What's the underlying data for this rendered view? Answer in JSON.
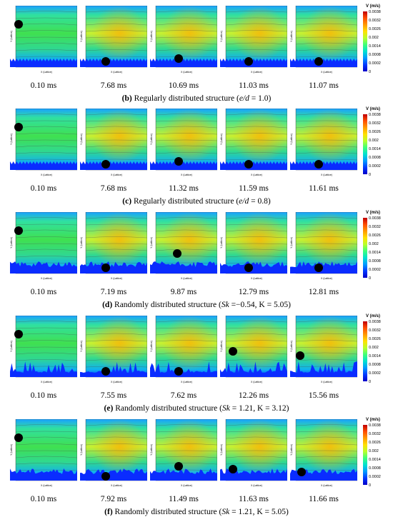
{
  "colorbar": {
    "title": "V (m/s)",
    "ticks": [
      "0.0038",
      "0.0032",
      "0.0026",
      "0.002",
      "0.0014",
      "0.0008",
      "0.0002",
      "0"
    ]
  },
  "axis_labels": {
    "x": "X (Lattice)",
    "y": "Y (Lattice)"
  },
  "rows": [
    {
      "caption_label": "(b)",
      "caption_text": " Regularly distributed structure (",
      "param": "e/d",
      "param_value": " = 1.0)",
      "times": [
        "0.10 ms",
        "7.68 ms",
        "10.69 ms",
        "11.03 ms",
        "11.07 ms"
      ],
      "surface": "regular"
    },
    {
      "caption_label": "(c)",
      "caption_text": " Regularly distributed structure (",
      "param": "e/d",
      "param_value": " = 0.8)",
      "times": [
        "0.10 ms",
        "7.68 ms",
        "11.32 ms",
        "11.59 ms",
        "11.61 ms"
      ],
      "surface": "regular"
    },
    {
      "caption_label": "(d)",
      "caption_text": " Randomly distributed structure (",
      "param": "Sk",
      "param_value": " =−0.54, K = 5.05)",
      "times": [
        "0.10 ms",
        "7.19 ms",
        "9.87 ms",
        "12.79 ms",
        "12.81 ms"
      ],
      "surface": "random"
    },
    {
      "caption_label": "(e)",
      "caption_text": " Randomly distributed structure (",
      "param": "Sk",
      "param_value": " = 1.21, K = 3.12)",
      "times": [
        "0.10 ms",
        "7.55 ms",
        "7.62 ms",
        "12.26 ms",
        "15.56 ms"
      ],
      "surface": "peaked"
    },
    {
      "caption_label": "(f)",
      "caption_text": " Randomly distributed structure (",
      "param": "Sk",
      "param_value": " = 1.21, K = 5.05)",
      "times": [
        "0.10 ms",
        "7.92 ms",
        "11.49 ms",
        "11.63 ms",
        "11.66 ms"
      ],
      "surface": "random2"
    }
  ],
  "colors": {
    "low": "#0033ff",
    "mid": "#30e070",
    "high": "#ffb000",
    "bubble": "#000000"
  }
}
